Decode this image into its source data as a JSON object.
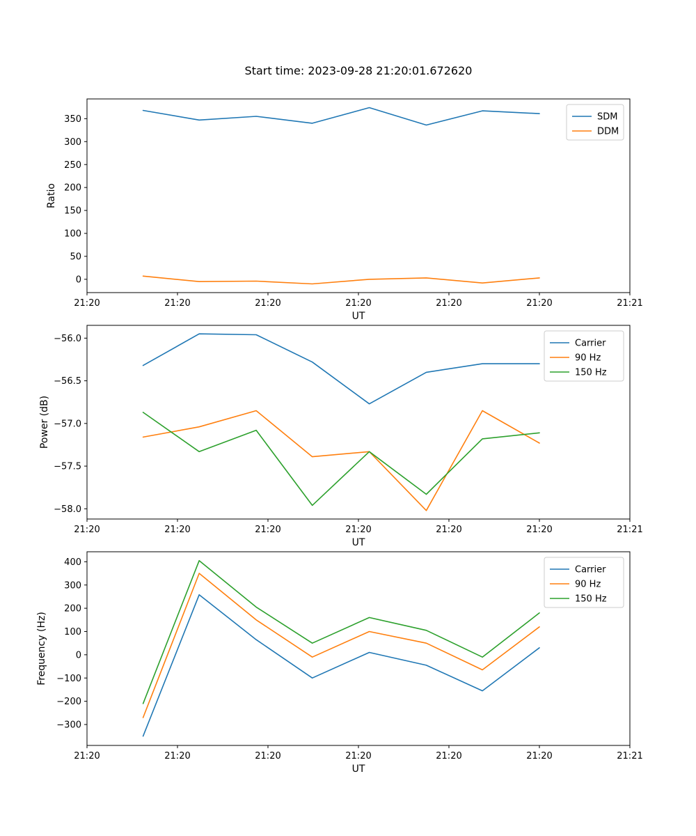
{
  "figure": {
    "title": "Start time: 2023-09-28 21:20:01.672620",
    "background": "#ffffff"
  },
  "chart_data": [
    {
      "type": "line",
      "title": "Start time: 2023-09-28 21:20:01.672620",
      "xlabel": "UT",
      "ylabel": "Ratio",
      "grid": false,
      "legend_position": "upper right",
      "x_tick_labels": [
        "21:20",
        "21:20",
        "21:20",
        "21:20",
        "21:20",
        "21:20",
        "21:21"
      ],
      "xlim_seconds": [
        0,
        60
      ],
      "x_seconds": [
        6.2,
        12.4,
        18.7,
        24.9,
        31.2,
        37.5,
        43.7,
        50.0
      ],
      "y_ticks": [
        0,
        50,
        100,
        150,
        200,
        250,
        300,
        350
      ],
      "y_tick_labels": [
        "0",
        "50",
        "100",
        "150",
        "200",
        "250",
        "300",
        "350"
      ],
      "ylim": [
        -29,
        393
      ],
      "series": [
        {
          "name": "SDM",
          "color": "#1f77b4",
          "values": [
            368,
            347,
            355,
            340,
            374,
            336,
            367,
            361
          ]
        },
        {
          "name": "DDM",
          "color": "#ff7f0e",
          "values": [
            7,
            -5,
            -4,
            -10,
            0,
            3,
            -8,
            3
          ]
        }
      ]
    },
    {
      "type": "line",
      "title": "",
      "xlabel": "UT",
      "ylabel": "Power (dB)",
      "grid": false,
      "legend_position": "upper right",
      "x_tick_labels": [
        "21:20",
        "21:20",
        "21:20",
        "21:20",
        "21:20",
        "21:20",
        "21:21"
      ],
      "xlim_seconds": [
        0,
        60
      ],
      "x_seconds": [
        6.2,
        12.4,
        18.7,
        24.9,
        31.2,
        37.5,
        43.7,
        50.0
      ],
      "y_ticks": [
        -58.0,
        -57.5,
        -57.0,
        -56.5,
        -56.0
      ],
      "y_tick_labels": [
        "−58.0",
        "−57.5",
        "−57.0",
        "−56.5",
        "−56.0"
      ],
      "ylim": [
        -58.12,
        -55.85
      ],
      "series": [
        {
          "name": "Carrier",
          "color": "#1f77b4",
          "values": [
            -56.32,
            -55.95,
            -55.96,
            -56.28,
            -56.77,
            -56.4,
            -56.3,
            -56.3
          ]
        },
        {
          "name": "90 Hz",
          "color": "#ff7f0e",
          "values": [
            -57.16,
            -57.04,
            -56.85,
            -57.39,
            -57.33,
            -58.02,
            -56.85,
            -57.23
          ]
        },
        {
          "name": "150 Hz",
          "color": "#2ca02c",
          "values": [
            -56.87,
            -57.33,
            -57.08,
            -57.96,
            -57.33,
            -57.83,
            -57.18,
            -57.11
          ]
        }
      ]
    },
    {
      "type": "line",
      "title": "",
      "xlabel": "UT",
      "ylabel": "Frequency (Hz)",
      "grid": false,
      "legend_position": "upper right",
      "x_tick_labels": [
        "21:20",
        "21:20",
        "21:20",
        "21:20",
        "21:20",
        "21:20",
        "21:21"
      ],
      "xlim_seconds": [
        0,
        60
      ],
      "x_seconds": [
        6.2,
        12.4,
        18.7,
        24.9,
        31.2,
        37.5,
        43.7,
        50.0
      ],
      "y_ticks": [
        -300,
        -200,
        -100,
        0,
        100,
        200,
        300,
        400
      ],
      "y_tick_labels": [
        "−300",
        "−200",
        "−100",
        "0",
        "100",
        "200",
        "300",
        "400"
      ],
      "ylim": [
        -390,
        443
      ],
      "series": [
        {
          "name": "Carrier",
          "color": "#1f77b4",
          "values": [
            -350,
            258,
            65,
            -100,
            10,
            -45,
            -155,
            30
          ]
        },
        {
          "name": "90 Hz",
          "color": "#ff7f0e",
          "values": [
            -270,
            350,
            150,
            -10,
            100,
            50,
            -65,
            120
          ]
        },
        {
          "name": "150 Hz",
          "color": "#2ca02c",
          "values": [
            -210,
            405,
            205,
            50,
            160,
            105,
            -10,
            180
          ]
        }
      ]
    }
  ]
}
